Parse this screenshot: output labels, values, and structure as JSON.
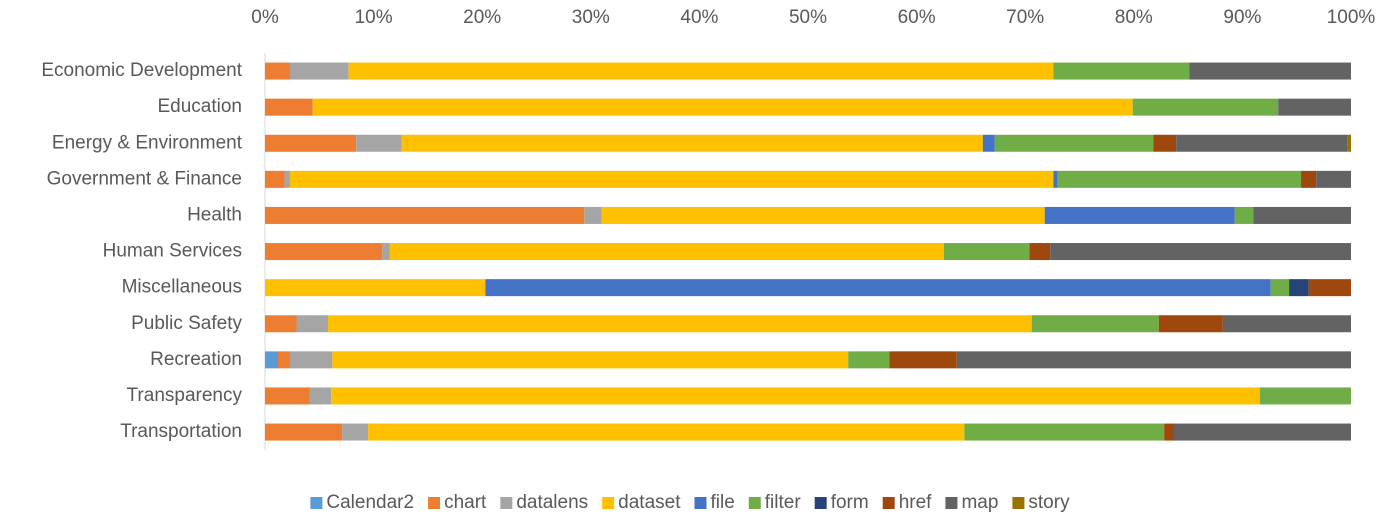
{
  "chart_data": {
    "type": "stacked_bar_horizontal_percent",
    "categories": [
      "Economic Development",
      "Education",
      "Energy & Environment",
      "Government & Finance",
      "Health",
      "Human Services",
      "Miscellaneous",
      "Public Safety",
      "Recreation",
      "Transparency",
      "Transportation"
    ],
    "series": [
      {
        "name": "Calendar2",
        "color": "#5b9bd5",
        "values": [
          0,
          0,
          0,
          0,
          0,
          0,
          0,
          0,
          1.2,
          0,
          0
        ]
      },
      {
        "name": "chart",
        "color": "#ed7d31",
        "values": [
          2.3,
          4.4,
          8.4,
          1.8,
          29.4,
          10.8,
          0,
          2.9,
          1.1,
          4.1,
          7.1
        ]
      },
      {
        "name": "datalens",
        "color": "#a5a5a5",
        "values": [
          5.4,
          0,
          4.2,
          0.5,
          1.6,
          0.7,
          0,
          2.9,
          3.9,
          2.0,
          2.4
        ]
      },
      {
        "name": "dataset",
        "color": "#ffc000",
        "values": [
          64.9,
          75.5,
          53.5,
          70.3,
          40.8,
          51.0,
          20.3,
          64.8,
          47.5,
          85.5,
          54.9
        ]
      },
      {
        "name": "file",
        "color": "#4472c4",
        "values": [
          0,
          0,
          1.1,
          0.4,
          17.5,
          0,
          72.3,
          0,
          0,
          0,
          0
        ]
      },
      {
        "name": "filter",
        "color": "#70ad47",
        "values": [
          12.5,
          13.4,
          14.6,
          22.4,
          1.7,
          7.9,
          1.7,
          11.7,
          3.8,
          8.4,
          18.4
        ]
      },
      {
        "name": "form",
        "color": "#264478",
        "values": [
          0,
          0,
          0,
          0,
          0,
          0,
          1.8,
          0,
          0,
          0,
          0
        ]
      },
      {
        "name": "href",
        "color": "#9e480e",
        "values": [
          0,
          0,
          2.1,
          1.4,
          0,
          1.9,
          3.9,
          5.9,
          6.2,
          0,
          0.9
        ]
      },
      {
        "name": "map",
        "color": "#636363",
        "values": [
          14.9,
          6.7,
          15.8,
          3.2,
          9.0,
          27.7,
          0,
          11.8,
          36.3,
          0,
          16.3
        ]
      },
      {
        "name": "story",
        "color": "#997300",
        "values": [
          0,
          0,
          0.3,
          0,
          0,
          0,
          0,
          0,
          0,
          0,
          0
        ]
      }
    ],
    "xlim": [
      0,
      100
    ],
    "xticks": [
      {
        "value": 0,
        "label": "0%"
      },
      {
        "value": 10,
        "label": "10%"
      },
      {
        "value": 20,
        "label": "20%"
      },
      {
        "value": 30,
        "label": "30%"
      },
      {
        "value": 40,
        "label": "40%"
      },
      {
        "value": 50,
        "label": "50%"
      },
      {
        "value": 60,
        "label": "60%"
      },
      {
        "value": 70,
        "label": "70%"
      },
      {
        "value": 80,
        "label": "80%"
      },
      {
        "value": 90,
        "label": "90%"
      },
      {
        "value": 100,
        "label": "100%"
      }
    ],
    "legend": "bottom"
  }
}
